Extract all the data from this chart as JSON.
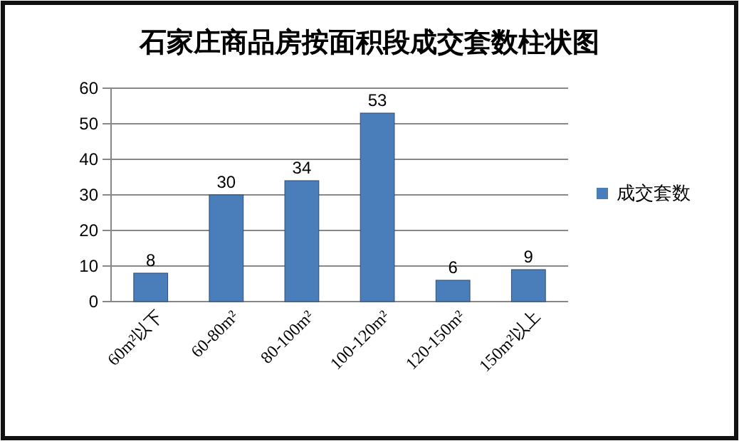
{
  "chart_data": {
    "type": "bar",
    "title": "石家庄商品房按面积段成交套数柱状图",
    "categories": [
      "60m²以下",
      "60-80m²",
      "80-100m²",
      "100-120m²",
      "120-150m²",
      "150m²以上"
    ],
    "series": [
      {
        "name": "成交套数",
        "color": "#4a7ebb",
        "values": [
          8,
          30,
          34,
          53,
          6,
          9
        ]
      }
    ],
    "ylim": [
      0,
      60
    ],
    "yticks": [
      0,
      10,
      20,
      30,
      40,
      50,
      60
    ],
    "grid": "y",
    "legend": "right",
    "data_labels": true
  }
}
